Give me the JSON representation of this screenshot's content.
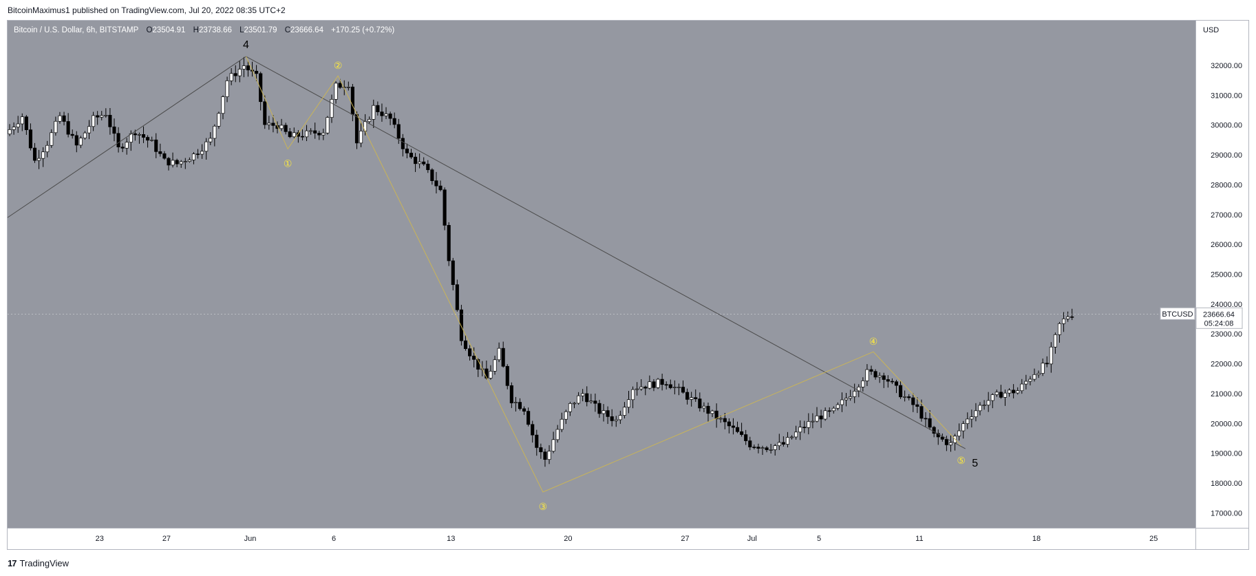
{
  "header": {
    "published_text": "BitcoinMaximus1 published on TradingView.com, Jul 20, 2022 08:35 UTC+2"
  },
  "legend": {
    "symbol": "Bitcoin / U.S. Dollar, 6h, BITSTAMP",
    "open_label": "O",
    "open": "23504.91",
    "high_label": "H",
    "high": "23738.66",
    "low_label": "L",
    "low": "23501.79",
    "close_label": "C",
    "close": "23666.64",
    "change": "+170.25 (+0.72%)"
  },
  "price_axis": {
    "currency": "USD"
  },
  "last_price": {
    "ticker": "BTCUSD",
    "price": "23666.64",
    "countdown": "05:24:08"
  },
  "footer": {
    "logo": "17",
    "brand": "TradingView"
  },
  "colors": {
    "background": "#9598a1",
    "bull": "#ffffff",
    "bear": "#000000",
    "wave_line": "#c9b458",
    "trend_line": "#4a4a4a",
    "wave_label": "#ffeb3b"
  },
  "chart_data": {
    "type": "candlestick",
    "title": "Bitcoin / U.S. Dollar, 6h, BITSTAMP",
    "ylabel": "USD",
    "ylim": [
      16500,
      33500
    ],
    "y_ticks": [
      "17000.00",
      "18000.00",
      "19000.00",
      "20000.00",
      "21000.00",
      "22000.00",
      "23000.00",
      "24000.00",
      "25000.00",
      "26000.00",
      "27000.00",
      "28000.00",
      "29000.00",
      "30000.00",
      "31000.00",
      "32000.00"
    ],
    "x_ticks": [
      {
        "label": "23",
        "date": "2022-05-23"
      },
      {
        "label": "27",
        "date": "2022-05-27"
      },
      {
        "label": "Jun",
        "date": "2022-06-01"
      },
      {
        "label": "6",
        "date": "2022-06-06"
      },
      {
        "label": "13",
        "date": "2022-06-13"
      },
      {
        "label": "20",
        "date": "2022-06-20"
      },
      {
        "label": "27",
        "date": "2022-06-27"
      },
      {
        "label": "Jul",
        "date": "2022-07-01"
      },
      {
        "label": "5",
        "date": "2022-07-05"
      },
      {
        "label": "11",
        "date": "2022-07-11"
      },
      {
        "label": "18",
        "date": "2022-07-18"
      },
      {
        "label": "25",
        "date": "2022-07-25"
      }
    ],
    "xlim": [
      "2022-05-17T12:00",
      "2022-07-27T12:00"
    ],
    "price_path": [
      [
        "2022-05-17T12:00",
        29700
      ],
      [
        "2022-05-18T12:00",
        30300
      ],
      [
        "2022-05-19T06:00",
        28800
      ],
      [
        "2022-05-20T00:00",
        29400
      ],
      [
        "2022-05-20T18:00",
        30300
      ],
      [
        "2022-05-21T18:00",
        29300
      ],
      [
        "2022-05-22T18:00",
        30200
      ],
      [
        "2022-05-23T12:00",
        30400
      ],
      [
        "2022-05-24T06:00",
        29200
      ],
      [
        "2022-05-25T06:00",
        29800
      ],
      [
        "2022-05-26T06:00",
        29400
      ],
      [
        "2022-05-27T00:00",
        28800
      ],
      [
        "2022-05-27T18:00",
        28700
      ],
      [
        "2022-05-28T18:00",
        29000
      ],
      [
        "2022-05-29T18:00",
        29500
      ],
      [
        "2022-05-30T18:00",
        31500
      ],
      [
        "2022-05-31T18:00",
        32000
      ],
      [
        "2022-06-01T12:00",
        31600
      ],
      [
        "2022-06-02T00:00",
        30000
      ],
      [
        "2022-06-02T18:00",
        30000
      ],
      [
        "2022-06-03T12:00",
        29600
      ],
      [
        "2022-06-04T12:00",
        29700
      ],
      [
        "2022-06-05T12:00",
        29800
      ],
      [
        "2022-06-06T06:00",
        31300
      ],
      [
        "2022-06-07T00:00",
        31400
      ],
      [
        "2022-06-07T12:00",
        29400
      ],
      [
        "2022-06-08T12:00",
        30600
      ],
      [
        "2022-06-09T12:00",
        30200
      ],
      [
        "2022-06-10T12:00",
        29000
      ],
      [
        "2022-06-11T12:00",
        28600
      ],
      [
        "2022-06-12T12:00",
        27800
      ],
      [
        "2022-06-13T00:00",
        25500
      ],
      [
        "2022-06-13T18:00",
        22900
      ],
      [
        "2022-06-14T12:00",
        22100
      ],
      [
        "2022-06-15T06:00",
        21500
      ],
      [
        "2022-06-16T00:00",
        22400
      ],
      [
        "2022-06-16T18:00",
        20800
      ],
      [
        "2022-06-17T12:00",
        20500
      ],
      [
        "2022-06-18T06:00",
        19200
      ],
      [
        "2022-06-18T18:00",
        18800
      ],
      [
        "2022-06-19T12:00",
        19800
      ],
      [
        "2022-06-20T06:00",
        20600
      ],
      [
        "2022-06-21T00:00",
        21000
      ],
      [
        "2022-06-22T00:00",
        20400
      ],
      [
        "2022-06-23T00:00",
        20100
      ],
      [
        "2022-06-24T00:00",
        21200
      ],
      [
        "2022-06-25T00:00",
        21300
      ],
      [
        "2022-06-26T00:00",
        21400
      ],
      [
        "2022-06-27T00:00",
        21000
      ],
      [
        "2022-06-28T00:00",
        20600
      ],
      [
        "2022-06-29T00:00",
        20200
      ],
      [
        "2022-06-30T00:00",
        19800
      ],
      [
        "2022-07-01T00:00",
        19300
      ],
      [
        "2022-07-02T00:00",
        19200
      ],
      [
        "2022-07-03T00:00",
        19300
      ],
      [
        "2022-07-04T00:00",
        19800
      ],
      [
        "2022-07-05T00:00",
        20200
      ],
      [
        "2022-07-06T00:00",
        20400
      ],
      [
        "2022-07-07T00:00",
        21000
      ],
      [
        "2022-07-08T00:00",
        21700
      ],
      [
        "2022-07-09T00:00",
        21600
      ],
      [
        "2022-07-10T00:00",
        21000
      ],
      [
        "2022-07-11T00:00",
        20500
      ],
      [
        "2022-07-12T00:00",
        19600
      ],
      [
        "2022-07-13T00:00",
        19300
      ],
      [
        "2022-07-14T00:00",
        20200
      ],
      [
        "2022-07-15T00:00",
        20700
      ],
      [
        "2022-07-16T00:00",
        21000
      ],
      [
        "2022-07-17T00:00",
        21100
      ],
      [
        "2022-07-18T00:00",
        21700
      ],
      [
        "2022-07-18T18:00",
        22000
      ],
      [
        "2022-07-19T12:00",
        23300
      ],
      [
        "2022-07-20T02:00",
        23666
      ]
    ],
    "wave_points": [
      {
        "label": "4",
        "date": "2022-05-31T18:00",
        "price": 32300,
        "style": "major"
      },
      {
        "label": "①",
        "date": "2022-06-03T06:00",
        "price": 29200,
        "style": "minor"
      },
      {
        "label": "②",
        "date": "2022-06-06T06:00",
        "price": 31650,
        "style": "minor"
      },
      {
        "label": "③",
        "date": "2022-06-18T12:00",
        "price": 17700,
        "style": "minor"
      },
      {
        "label": "④",
        "date": "2022-07-08T06:00",
        "price": 22400,
        "style": "minor"
      },
      {
        "label": "⑤",
        "date": "2022-07-13T12:00",
        "price": 19250,
        "style": "minor"
      },
      {
        "label": "5",
        "date": "2022-07-13T18:00",
        "price": 19250,
        "style": "major"
      }
    ],
    "trend_lines": [
      {
        "from": [
          "2022-05-17T12:00",
          26900
        ],
        "to": [
          "2022-05-31T18:00",
          32300
        ]
      },
      {
        "from": [
          "2022-05-31T18:00",
          32300
        ],
        "to": [
          "2022-07-13T18:00",
          19150
        ]
      }
    ]
  }
}
